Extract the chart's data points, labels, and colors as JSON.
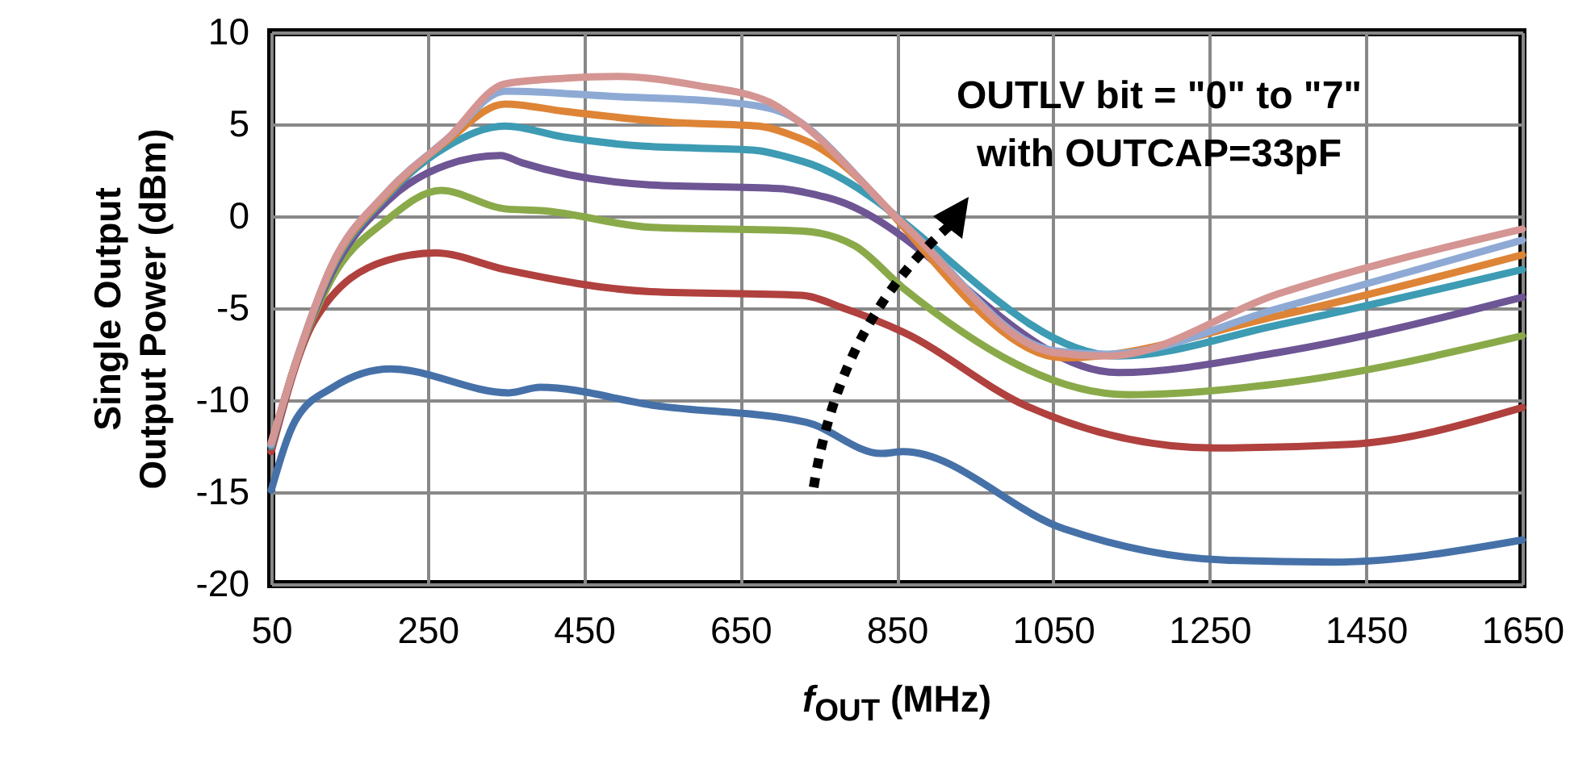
{
  "chart_data": {
    "type": "line",
    "xlabel": "f$_{OUT}$ (MHz)",
    "ylabel": "Single  Output\nOutput Power (dBm)",
    "annotations": [
      "OUTLV bit = \"0\" to \"7\"\nwith OUTCAP=33pF"
    ],
    "xlim": [
      50,
      1650
    ],
    "xticks": [
      50,
      250,
      450,
      650,
      850,
      1050,
      1250,
      1450,
      1650
    ],
    "ylim": [
      -20,
      10
    ],
    "yticks": [
      -20,
      -15,
      -10,
      -5,
      0,
      5,
      10
    ],
    "grid": true,
    "legend": false,
    "marker": "none",
    "line_style": "solid",
    "series": [
      {
        "color": "#4671a8",
        "x": [
          50,
          81,
          129,
          203,
          354,
          394,
          542,
          734,
          830,
          858,
          1064,
          1270,
          1408,
          1650
        ],
        "values": [
          -14.9,
          -11.1,
          -9.3,
          -8.3,
          -9.6,
          -9.3,
          -10.3,
          -11.2,
          -12.9,
          -12.8,
          -17,
          -18.7,
          -18.8,
          -17.6
        ]
      },
      {
        "color": "#b0413e",
        "x": [
          50,
          105,
          198,
          260,
          349,
          535,
          728,
          782,
          858,
          1015,
          1257,
          1429,
          1650
        ],
        "values": [
          -12.8,
          -5.7,
          -2.4,
          -2.0,
          -2.9,
          -4.1,
          -4.3,
          -5.0,
          -6.3,
          -10.3,
          -12.6,
          -12.4,
          -10.4
        ]
      },
      {
        "color": "#8aaa4a",
        "x": [
          50,
          81,
          126,
          198,
          267,
          349,
          398,
          535,
          728,
          796,
          858,
          1147,
          1339,
          1650
        ],
        "values": [
          -12.5,
          -8,
          -3.5,
          -0.2,
          1.4,
          0.4,
          0.3,
          -0.6,
          -0.8,
          -1.6,
          -3.9,
          -9.7,
          -9.1,
          -6.5
        ]
      },
      {
        "color": "#6e5594",
        "x": [
          50,
          81,
          126,
          198,
          275,
          343,
          371,
          535,
          700,
          762,
          1133,
          1339,
          1650
        ],
        "values": [
          -12.5,
          -8,
          -3.2,
          0.8,
          2.8,
          3.3,
          2.9,
          1.7,
          1.5,
          1.0,
          -8.5,
          -7.4,
          -4.4
        ]
      },
      {
        "color": "#3d9bb3",
        "x": [
          50,
          81,
          126,
          198,
          275,
          349,
          425,
          528,
          666,
          728,
          1133,
          1339,
          1650
        ],
        "values": [
          -12.5,
          -8,
          -3,
          1.1,
          3.8,
          4.9,
          4.3,
          3.8,
          3.6,
          3.0,
          -7.6,
          -5.9,
          -2.9
        ]
      },
      {
        "color": "#de8436",
        "x": [
          50,
          81,
          126,
          198,
          275,
          349,
          425,
          563,
          673,
          728,
          1064,
          1339,
          1650
        ],
        "values": [
          -12.4,
          -8,
          -2.9,
          1.2,
          4.1,
          6.1,
          5.7,
          5.1,
          4.9,
          4.2,
          -7.7,
          -5.4,
          -2.1
        ]
      },
      {
        "color": "#8eaad4",
        "x": [
          50,
          81,
          126,
          198,
          275,
          349,
          493,
          631,
          700,
          858,
          1050,
          1120,
          1339,
          1650
        ],
        "values": [
          -12.4,
          -8,
          -2.8,
          1.3,
          4.2,
          6.8,
          6.5,
          6.2,
          5.7,
          -0.4,
          -7.3,
          -7.5,
          -5,
          -1.3
        ]
      },
      {
        "color": "#d49593",
        "x": [
          50,
          81,
          126,
          198,
          275,
          349,
          425,
          493,
          596,
          687,
          720,
          858,
          1050,
          1120,
          1339,
          1650
        ],
        "values": [
          -12.3,
          -8,
          -2.8,
          1.3,
          4.2,
          7.2,
          7.5,
          7.6,
          7.1,
          6.2,
          5.3,
          -0.4,
          -7.4,
          -7.6,
          -4.2,
          -0.7
        ]
      }
    ]
  }
}
